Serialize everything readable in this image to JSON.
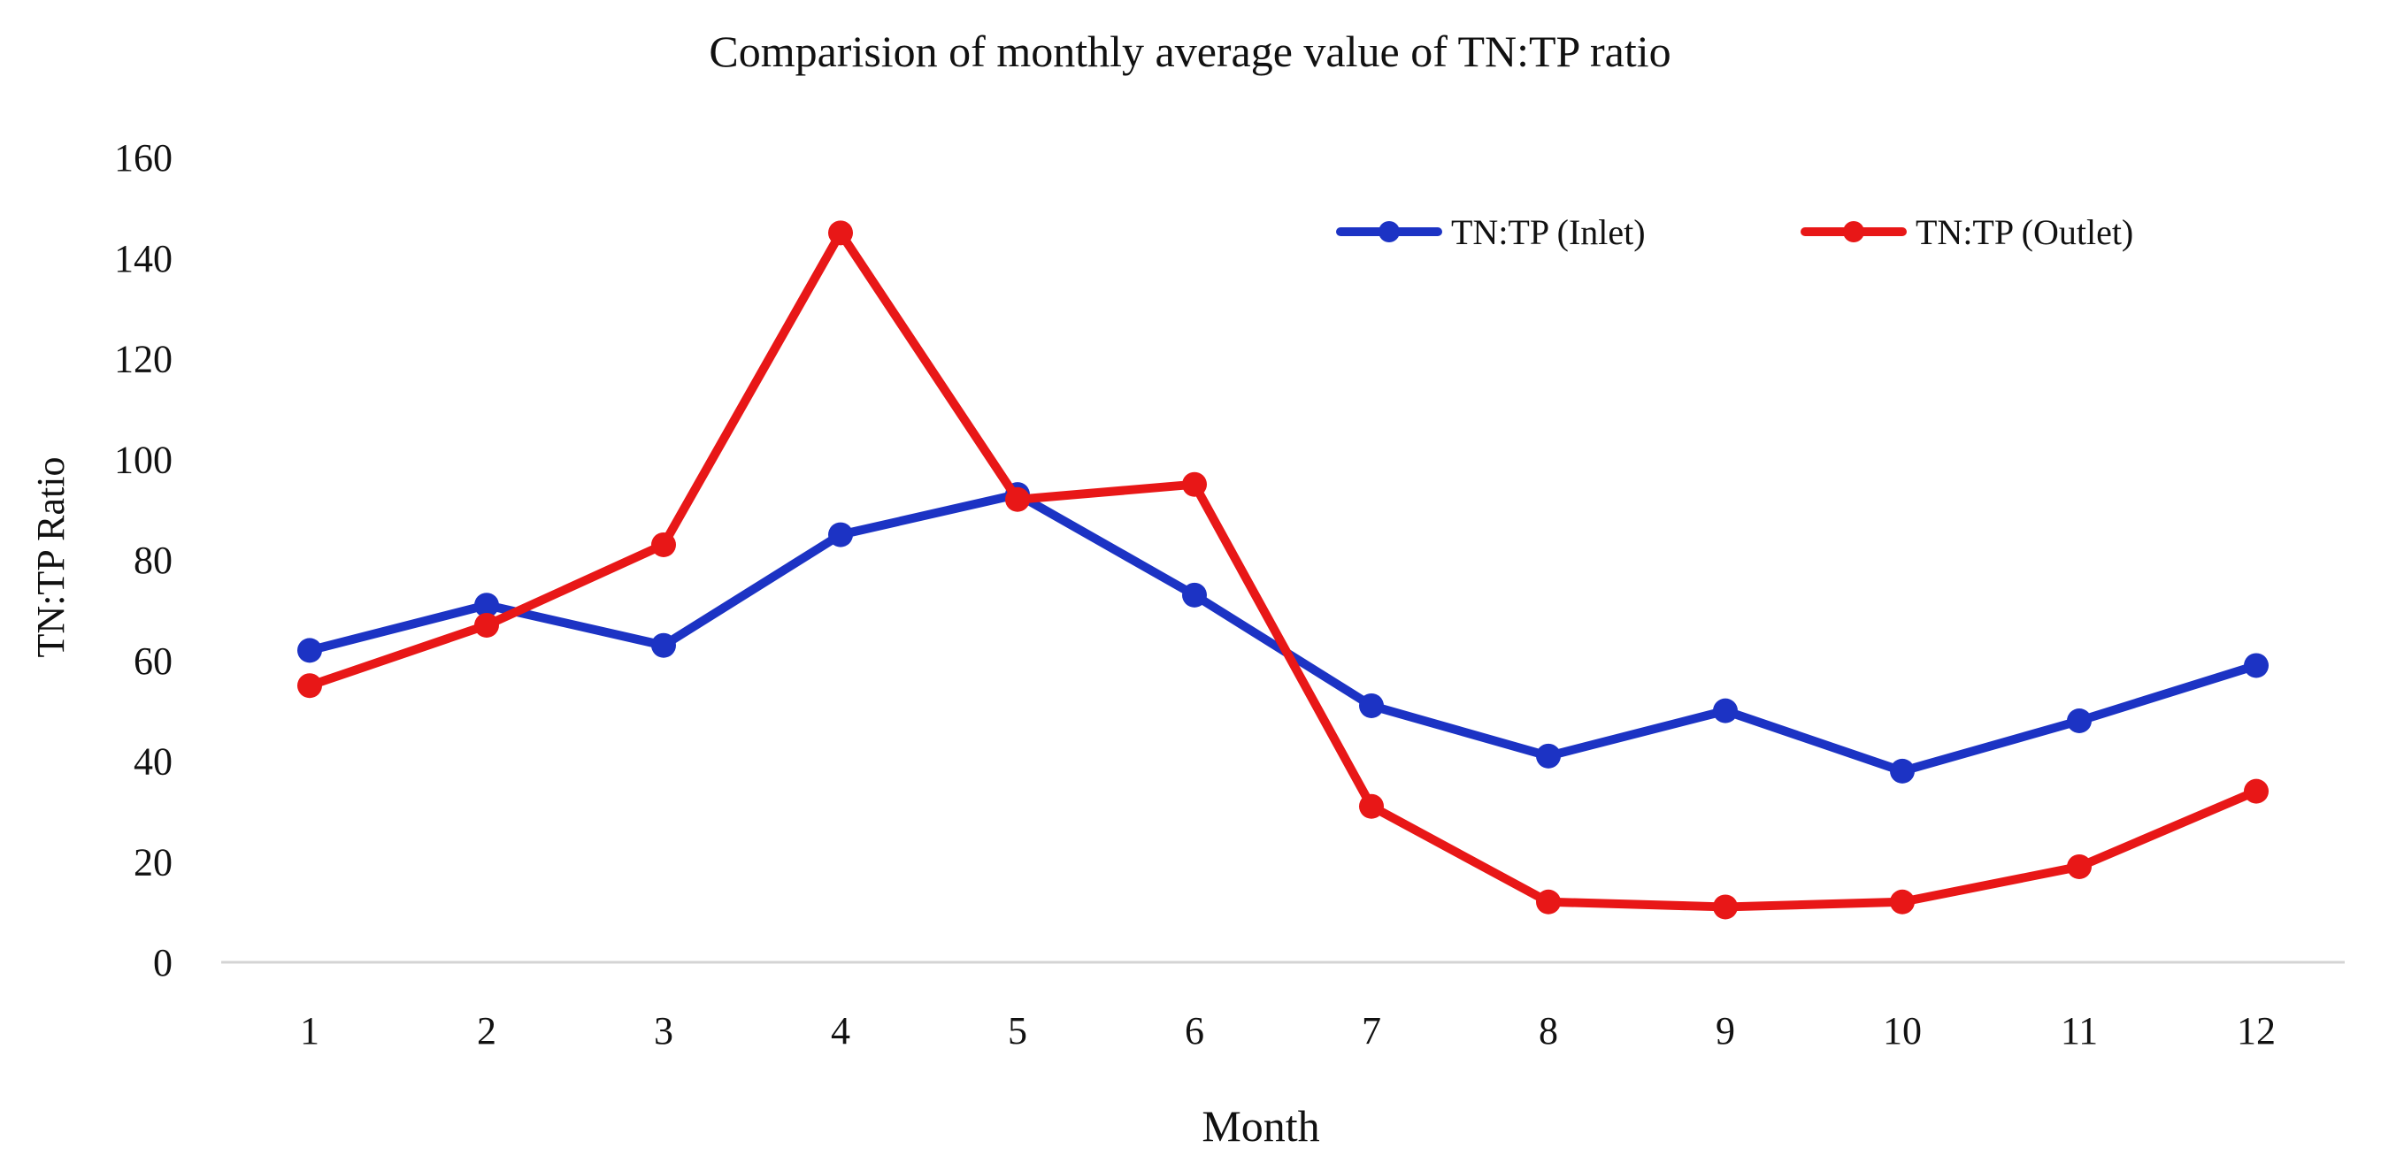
{
  "chart_data": {
    "type": "line",
    "title": "Comparision of monthly average value of TN:TP ratio",
    "xlabel": "Month",
    "ylabel": "TN:TP Ratio",
    "categories": [
      "1",
      "2",
      "3",
      "4",
      "5",
      "6",
      "7",
      "8",
      "9",
      "10",
      "11",
      "12"
    ],
    "y_ticks": [
      "0",
      "20",
      "40",
      "60",
      "80",
      "100",
      "120",
      "140",
      "160"
    ],
    "ylim": [
      0,
      160
    ],
    "grid": false,
    "legend_position": "top-right",
    "series": [
      {
        "name": "TN:TP (Inlet)",
        "color": "#1c33c4",
        "values": [
          62,
          71,
          63,
          85,
          93,
          73,
          51,
          41,
          50,
          38,
          48,
          59
        ]
      },
      {
        "name": "TN:TP (Outlet)",
        "color": "#e81717",
        "values": [
          55,
          67,
          83,
          145,
          92,
          95,
          31,
          12,
          11,
          12,
          19,
          34
        ]
      }
    ]
  }
}
